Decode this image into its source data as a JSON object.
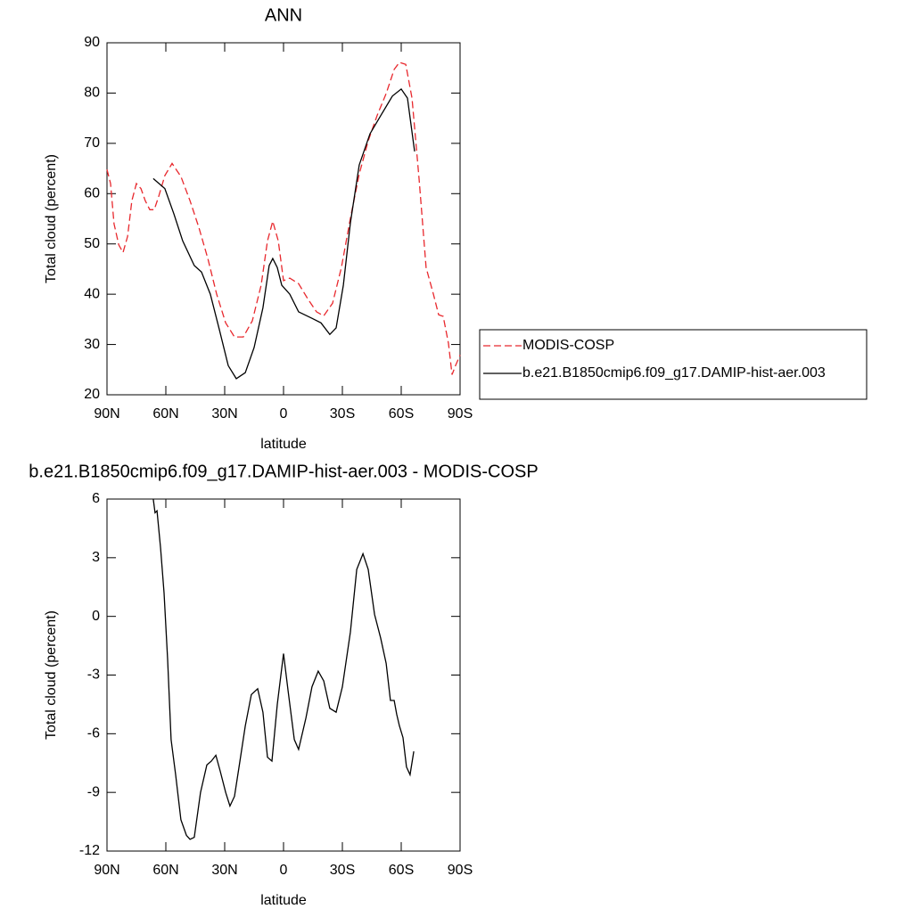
{
  "chart_data": [
    {
      "type": "line",
      "title": "ANN",
      "xlabel": "latitude",
      "ylabel": "Total cloud (percent)",
      "xlim": [
        90,
        -90
      ],
      "xticks": [
        {
          "value": 90,
          "label": "90N"
        },
        {
          "value": 60,
          "label": "60N"
        },
        {
          "value": 30,
          "label": "30N"
        },
        0,
        {
          "value": -30,
          "label": "30S"
        },
        {
          "value": -60,
          "label": "60S"
        },
        {
          "value": -90,
          "label": "90S"
        }
      ],
      "ylim": [
        20,
        90
      ],
      "yticks": [
        20,
        30,
        40,
        50,
        60,
        70,
        80,
        90
      ],
      "legend": "right",
      "series": [
        {
          "name": "MODIS-COSP",
          "color": "#e8282d",
          "dash": "dashed",
          "x": [
            90,
            88.2,
            86.4,
            84,
            81.8,
            79.5,
            77.3,
            75,
            72.7,
            70.5,
            68.2,
            65.9,
            63.6,
            60.5,
            56.8,
            52.3,
            47.7,
            43.2,
            38.6,
            34.1,
            29.5,
            25,
            20.5,
            15.9,
            11.4,
            8.2,
            5.5,
            2.7,
            0,
            -3.2,
            -7.7,
            -12.3,
            -16.8,
            -20.5,
            -25,
            -29.5,
            -34.1,
            -38.6,
            -43.2,
            -47.7,
            -52.3,
            -56.4,
            -59.1,
            -62.3,
            -65.5,
            -69.1,
            -72.7,
            -76.4,
            -79.1,
            -81.4,
            -84.1,
            -85.9,
            -87.7,
            -90
          ],
          "values": [
            64.8,
            62,
            54,
            49.8,
            48.3,
            51.5,
            58.6,
            62,
            61,
            58.6,
            56.8,
            56.8,
            59.5,
            63.6,
            66,
            63.4,
            58.6,
            53.3,
            47.1,
            40,
            34.3,
            31.5,
            31.5,
            34.7,
            41.8,
            50.6,
            54.5,
            50.6,
            42.7,
            43.2,
            42.1,
            39.1,
            36.5,
            35.7,
            38.2,
            45.3,
            55.1,
            63.9,
            70.5,
            75.5,
            79.9,
            84.7,
            86.1,
            85.7,
            79,
            63,
            45.3,
            40,
            35.9,
            35.6,
            30.2,
            24,
            25.8,
            27.9
          ]
        },
        {
          "name": "b.e21.B1850cmip6.f09_g17.DAMIP-hist-aer.003",
          "color": "#000000",
          "dash": "solid",
          "x": [
            66.4,
            60.5,
            55.9,
            51.4,
            45.5,
            41.8,
            37.3,
            32.7,
            28.2,
            24.1,
            19.5,
            15,
            10.5,
            7.3,
            5.5,
            3.2,
            0.9,
            -3.2,
            -7.7,
            -14.5,
            -19.1,
            -23.6,
            -26.8,
            -30.5,
            -34.1,
            -38.6,
            -44.1,
            -50,
            -55.5,
            -60,
            -63.2,
            -66.8
          ],
          "values": [
            63,
            61,
            56,
            50.6,
            45.7,
            44.4,
            40,
            32.9,
            25.8,
            23.2,
            24.4,
            29.4,
            37.3,
            45.7,
            47.1,
            45.3,
            41.8,
            40,
            36.5,
            35.2,
            34.3,
            32,
            33.3,
            41.8,
            54.2,
            65.7,
            71.9,
            75.8,
            79.4,
            80.8,
            79,
            68.4
          ]
        }
      ]
    },
    {
      "type": "line",
      "title": "b.e21.B1850cmip6.f09_g17.DAMIP-hist-aer.003 - MODIS-COSP",
      "xlabel": "latitude",
      "ylabel": "Total cloud (percent)",
      "xlim": [
        90,
        -90
      ],
      "xticks": [
        {
          "value": 90,
          "label": "90N"
        },
        {
          "value": 60,
          "label": "60N"
        },
        {
          "value": 30,
          "label": "30N"
        },
        0,
        {
          "value": -30,
          "label": "30S"
        },
        {
          "value": -60,
          "label": "60S"
        },
        {
          "value": -90,
          "label": "90S"
        }
      ],
      "ylim": [
        -12,
        6
      ],
      "yticks": [
        -12,
        -9,
        -6,
        -3,
        0,
        3,
        6
      ],
      "series": [
        {
          "color": "#000000",
          "dash": "solid",
          "x": [
            66.4,
            65.5,
            64.5,
            62.7,
            60.9,
            59.1,
            57.3,
            55,
            52.3,
            49.5,
            47.7,
            45.5,
            42.3,
            39.1,
            36.8,
            34.5,
            32.3,
            29.5,
            27.3,
            25,
            22.7,
            19.5,
            16.4,
            13.2,
            10.5,
            8.2,
            5.9,
            3.2,
            0,
            -2.3,
            -5.5,
            -7.7,
            -11.4,
            -14.5,
            -17.7,
            -20.5,
            -23.6,
            -26.8,
            -30,
            -34.1,
            -37.3,
            -40.5,
            -43.2,
            -46.4,
            -49.5,
            -52.3,
            -54.5,
            -56.4,
            -57.7,
            -59.1,
            -60.9,
            -62.7,
            -64.5,
            -66.4
          ],
          "values": [
            6,
            5.3,
            5.4,
            3.5,
            1.2,
            -2.2,
            -6.3,
            -8.1,
            -10.4,
            -11.2,
            -11.4,
            -11.3,
            -9.0,
            -7.6,
            -7.4,
            -7.1,
            -7.9,
            -9.0,
            -9.7,
            -9.2,
            -7.7,
            -5.6,
            -4.0,
            -3.7,
            -4.9,
            -7.2,
            -7.4,
            -4.5,
            -1.9,
            -3.8,
            -6.3,
            -6.8,
            -5.2,
            -3.6,
            -2.8,
            -3.3,
            -4.7,
            -4.9,
            -3.6,
            -0.8,
            2.4,
            3.2,
            2.4,
            0.1,
            -1.1,
            -2.4,
            -4.3,
            -4.3,
            -5.0,
            -5.6,
            -6.2,
            -7.7,
            -8.1,
            -6.9
          ]
        }
      ]
    }
  ]
}
